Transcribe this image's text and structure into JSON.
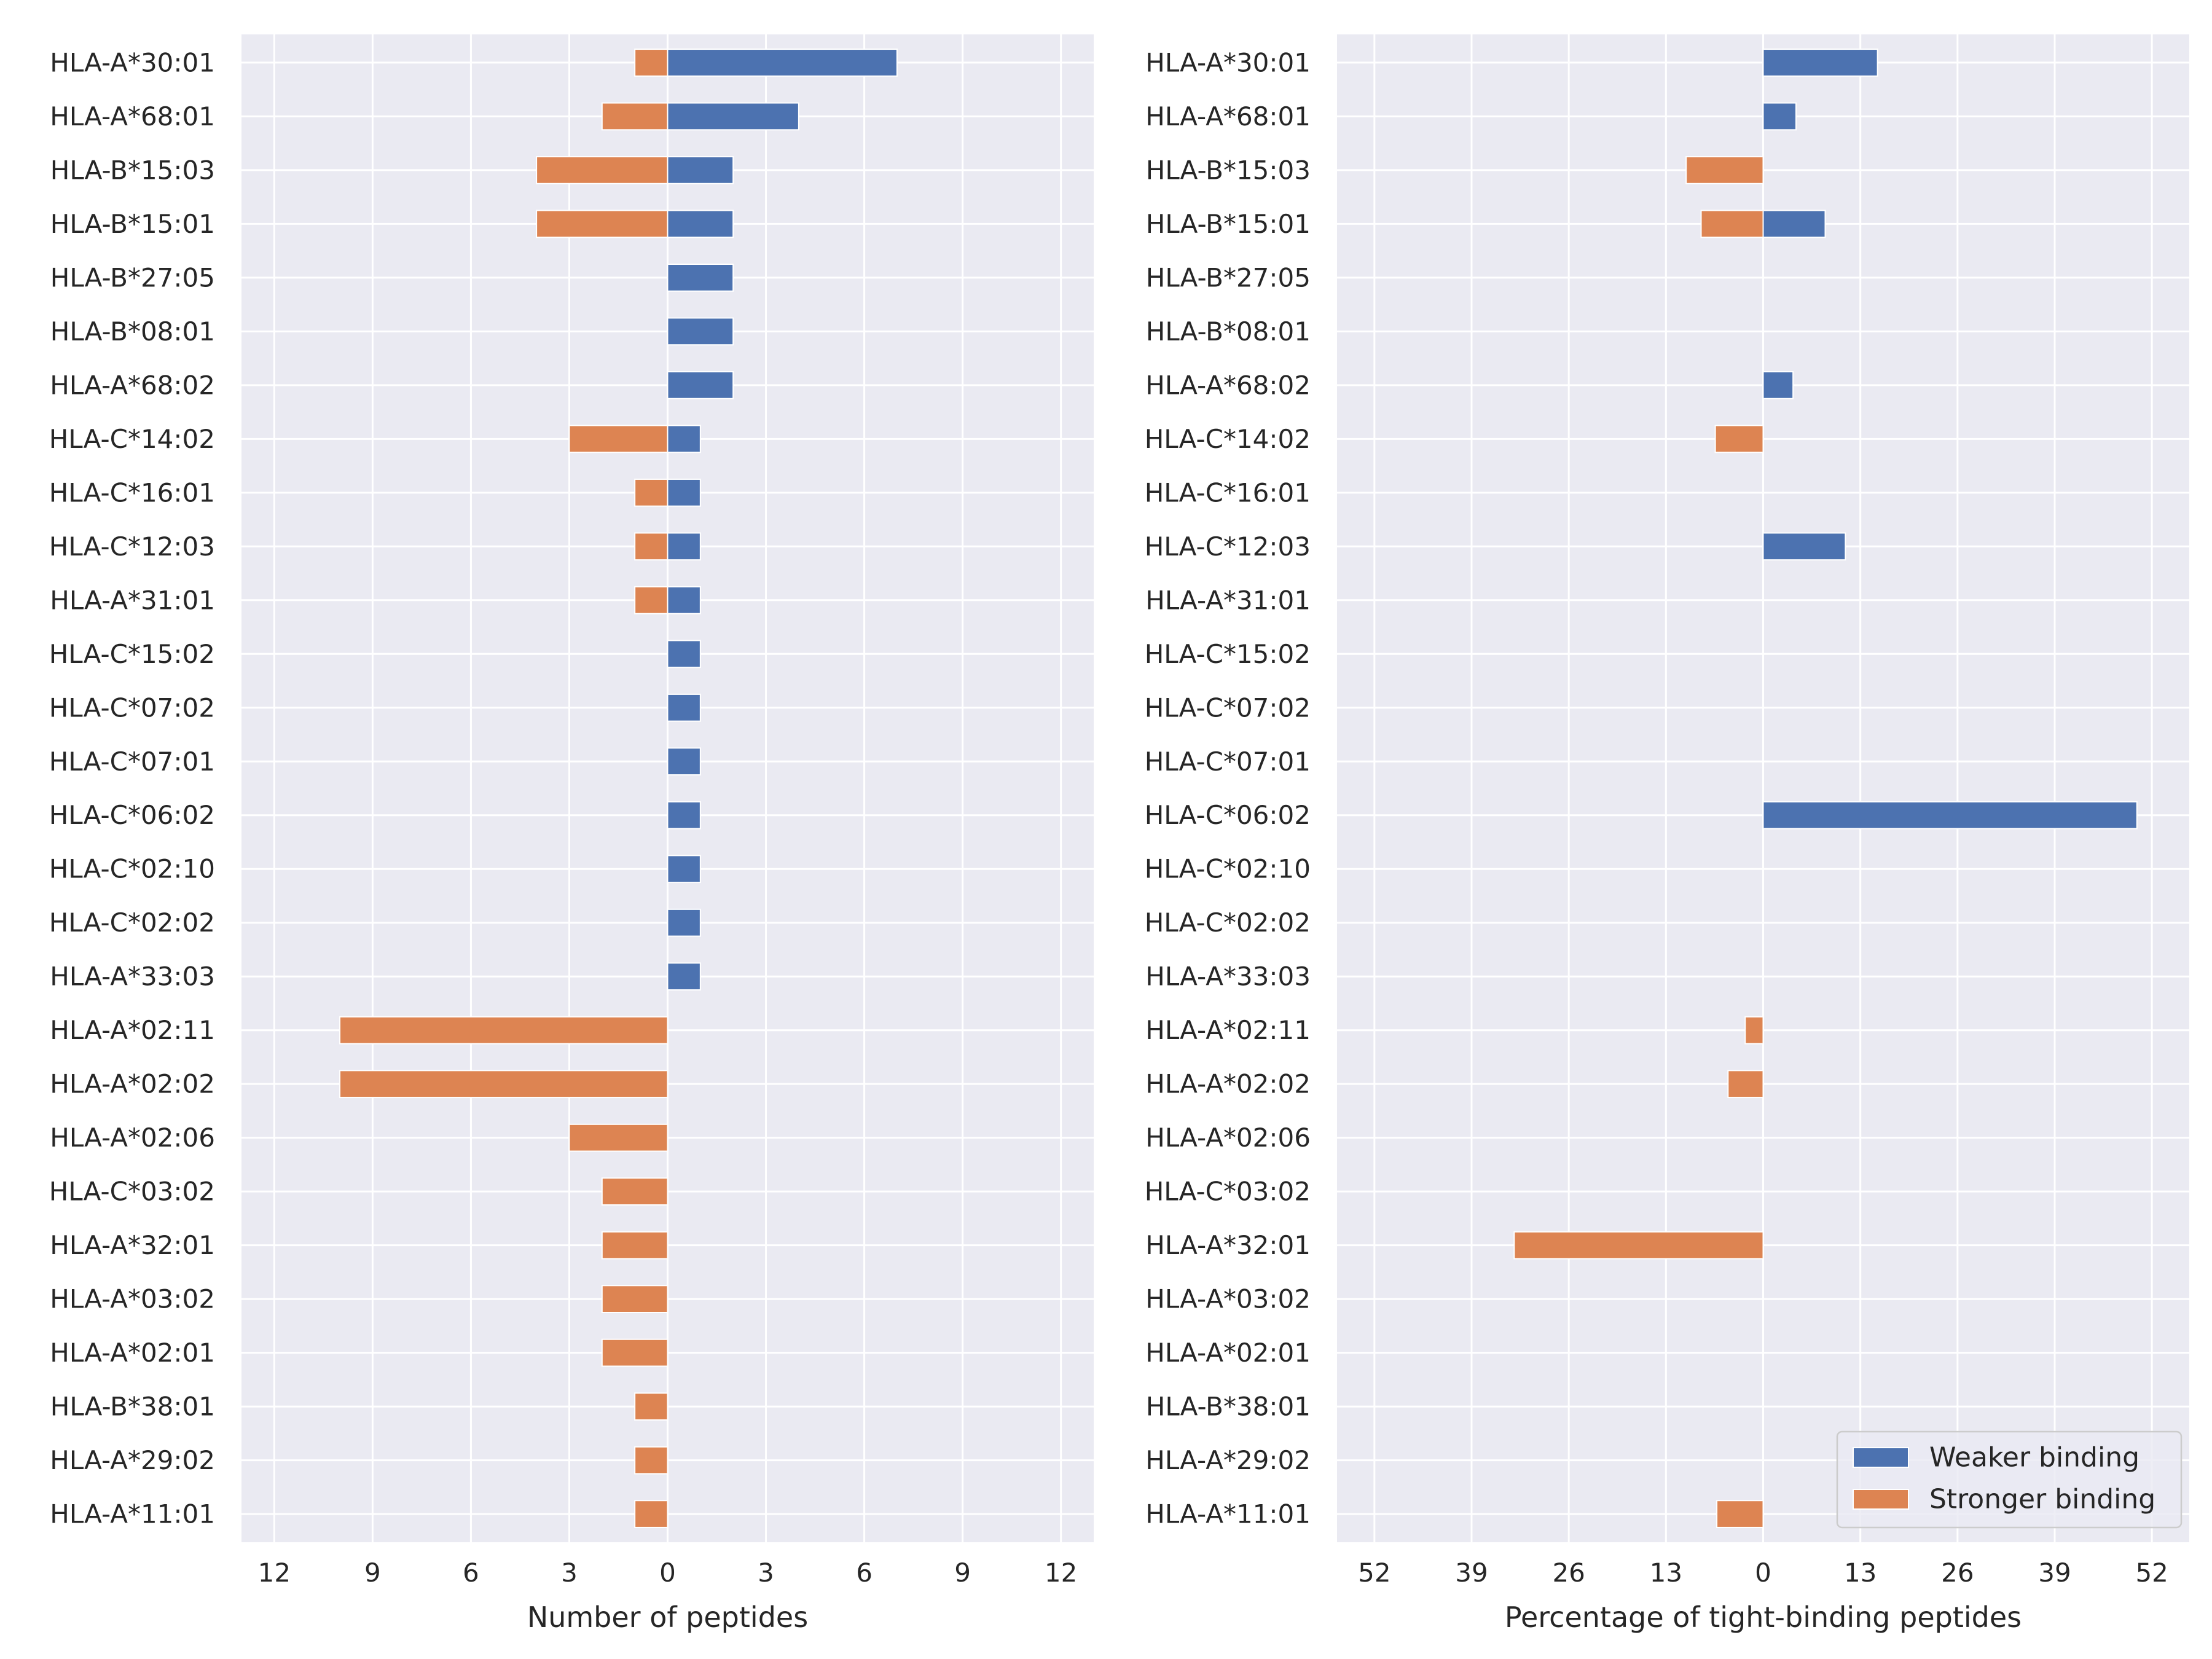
{
  "chart_data": [
    {
      "type": "bar",
      "orientation": "horizontal-diverging",
      "xlabel": "Number of peptides",
      "ylabel": "",
      "title": "",
      "xlim": [
        -13,
        13
      ],
      "xticks": [
        -12,
        -9,
        -6,
        -3,
        0,
        3,
        6,
        9,
        12
      ],
      "xtick_labels": [
        "12",
        "9",
        "6",
        "3",
        "0",
        "3",
        "6",
        "9",
        "12"
      ],
      "grid": true,
      "categories": [
        "HLA-A*30:01",
        "HLA-A*68:01",
        "HLA-B*15:03",
        "HLA-B*15:01",
        "HLA-B*27:05",
        "HLA-B*08:01",
        "HLA-A*68:02",
        "HLA-C*14:02",
        "HLA-C*16:01",
        "HLA-C*12:03",
        "HLA-A*31:01",
        "HLA-C*15:02",
        "HLA-C*07:02",
        "HLA-C*07:01",
        "HLA-C*06:02",
        "HLA-C*02:10",
        "HLA-C*02:02",
        "HLA-A*33:03",
        "HLA-A*02:11",
        "HLA-A*02:02",
        "HLA-A*02:06",
        "HLA-C*03:02",
        "HLA-A*32:01",
        "HLA-A*03:02",
        "HLA-A*02:01",
        "HLA-B*38:01",
        "HLA-A*29:02",
        "HLA-A*11:01"
      ],
      "series": [
        {
          "name": "Weaker binding",
          "color": "#4c72b0",
          "values": [
            7,
            4,
            2,
            2,
            2,
            2,
            2,
            1,
            1,
            1,
            1,
            1,
            1,
            1,
            1,
            1,
            1,
            1,
            0,
            0,
            0,
            0,
            0,
            0,
            0,
            0,
            0,
            0
          ]
        },
        {
          "name": "Stronger binding",
          "color": "#dd8452",
          "values": [
            -1,
            -2,
            -4,
            -4,
            0,
            0,
            0,
            -3,
            -1,
            -1,
            -1,
            0,
            0,
            0,
            0,
            0,
            0,
            0,
            -10,
            -10,
            -3,
            -2,
            -2,
            -2,
            -2,
            -1,
            -1,
            -1
          ]
        }
      ]
    },
    {
      "type": "bar",
      "orientation": "horizontal-diverging",
      "xlabel": "Percentage of tight-binding peptides",
      "ylabel": "",
      "title": "",
      "xlim": [
        -57,
        57
      ],
      "xticks": [
        -52,
        -39,
        -26,
        -13,
        0,
        13,
        26,
        39,
        52
      ],
      "xtick_labels": [
        "52",
        "39",
        "26",
        "13",
        "0",
        "13",
        "26",
        "39",
        "52"
      ],
      "grid": true,
      "legend": {
        "position": "bottom-right",
        "entries": [
          "Weaker binding",
          "Stronger binding"
        ]
      },
      "categories": [
        "HLA-A*30:01",
        "HLA-A*68:01",
        "HLA-B*15:03",
        "HLA-B*15:01",
        "HLA-B*27:05",
        "HLA-B*08:01",
        "HLA-A*68:02",
        "HLA-C*14:02",
        "HLA-C*16:01",
        "HLA-C*12:03",
        "HLA-A*31:01",
        "HLA-C*15:02",
        "HLA-C*07:02",
        "HLA-C*07:01",
        "HLA-C*06:02",
        "HLA-C*02:10",
        "HLA-C*02:02",
        "HLA-A*33:03",
        "HLA-A*02:11",
        "HLA-A*02:02",
        "HLA-A*02:06",
        "HLA-C*03:02",
        "HLA-A*32:01",
        "HLA-A*03:02",
        "HLA-A*02:01",
        "HLA-B*38:01",
        "HLA-A*29:02",
        "HLA-A*11:01"
      ],
      "series": [
        {
          "name": "Weaker binding",
          "color": "#4c72b0",
          "values": [
            15.3,
            4.4,
            0,
            8.3,
            0,
            0,
            4,
            0,
            0,
            11,
            0,
            0,
            0,
            0,
            50,
            0,
            0,
            0,
            0,
            0,
            0,
            0,
            0,
            0,
            0,
            0,
            0,
            0
          ]
        },
        {
          "name": "Stronger binding",
          "color": "#dd8452",
          "values": [
            0,
            0,
            -10.3,
            -8.3,
            0,
            0,
            0,
            -6.4,
            0,
            0,
            0,
            0,
            0,
            0,
            0,
            0,
            0,
            0,
            -2.4,
            -4.7,
            0,
            0,
            -33.3,
            0,
            0,
            0,
            0,
            -6.2
          ]
        }
      ]
    }
  ],
  "style": {
    "plot_background": "#eaeaf2",
    "grid_color": "#ffffff",
    "weaker_color": "#4c72b0",
    "stronger_color": "#dd8452"
  }
}
